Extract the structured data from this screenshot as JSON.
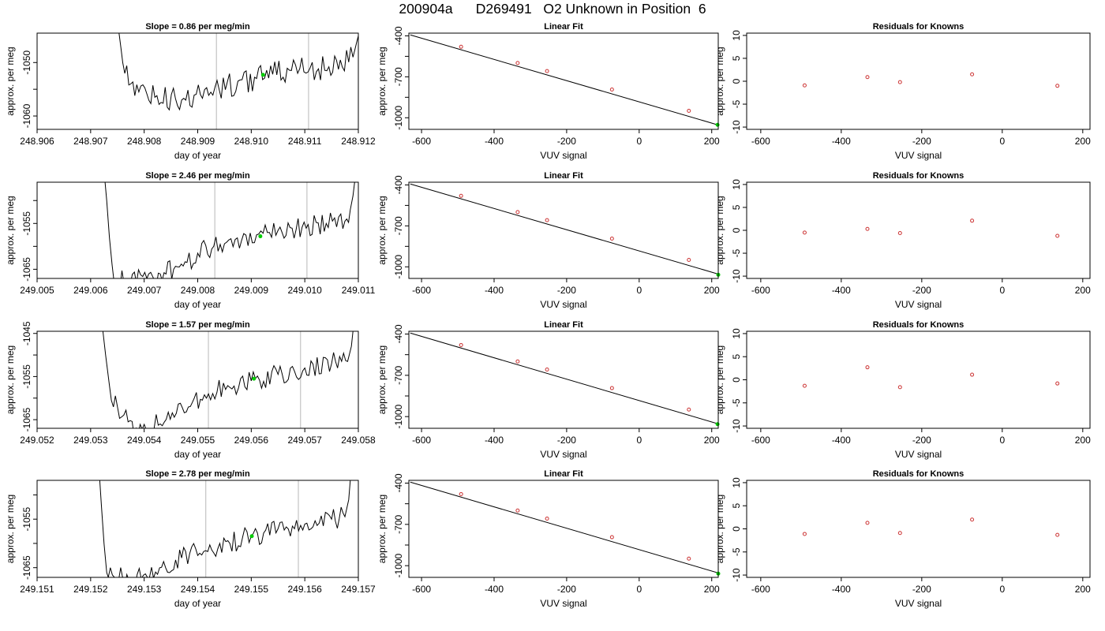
{
  "page_title": "200904a      D269491   O2 Unknown in Position  6",
  "colors": {
    "trace": "#000000",
    "marker": "#00cc00",
    "known_points": "#cc3333",
    "vline": "#c8c8c8",
    "fit_line": "#000000"
  },
  "chart_data": [
    {
      "type": "line",
      "panel": "time-series",
      "row": 1,
      "title": "Slope =  0.86  per meg/min",
      "xlabel": "day of year",
      "ylabel": "approx. per meg",
      "xlim": [
        248.906,
        248.912
      ],
      "ylim": [
        -1062.5,
        -1044.5
      ],
      "xticks": [
        248.906,
        248.907,
        248.908,
        248.909,
        248.91,
        248.911,
        248.912
      ],
      "xtick_labels": [
        "248.906",
        "248.907",
        "248.908",
        "248.909",
        "248.910",
        "248.911",
        "248.912"
      ],
      "yticks": [
        -1060,
        -1055,
        -1050
      ],
      "ytick_labels": [
        "-1060",
        "",
        "-1050"
      ],
      "vlines": [
        248.90935,
        248.91107
      ],
      "marker": {
        "x": 248.91022,
        "y": -1052.3
      },
      "trace_points": [
        [
          248.90753,
          -1044.5
        ],
        [
          248.9076,
          -1050
        ],
        [
          248.90775,
          -1054
        ],
        [
          248.9079,
          -1055.5
        ],
        [
          248.9082,
          -1056.5
        ],
        [
          248.9087,
          -1057
        ],
        [
          248.90905,
          -1056
        ],
        [
          248.9094,
          -1055
        ],
        [
          248.90975,
          -1053.5
        ],
        [
          248.9101,
          -1053
        ],
        [
          248.9104,
          -1052.2
        ],
        [
          248.91075,
          -1051.5
        ],
        [
          248.9111,
          -1051
        ],
        [
          248.91145,
          -1050.8
        ],
        [
          248.9117,
          -1050.8
        ],
        [
          248.9119,
          -1049
        ],
        [
          248.912,
          -1045
        ],
        [
          248.91205,
          -1044.5
        ]
      ],
      "noise_amp": 1.5
    },
    {
      "type": "scatter",
      "panel": "linear-fit",
      "row": 1,
      "title": "Linear Fit",
      "xlabel": "VUV signal",
      "ylabel": "approx. per meg",
      "xlim": [
        -635,
        218
      ],
      "ylim": [
        -1085,
        -380
      ],
      "xticks": [
        -600,
        -400,
        -200,
        0,
        200
      ],
      "xtick_labels": [
        "-600",
        "-400",
        "-200",
        "0",
        "200"
      ],
      "yticks": [
        -1000,
        -850,
        -700,
        -550,
        -400
      ],
      "ytick_labels": [
        "-1000",
        "",
        "-700",
        "",
        "-400"
      ],
      "known_x": [
        -491,
        -335,
        -254,
        -75,
        137
      ],
      "known_y": [
        -480,
        -599,
        -658,
        -793,
        -949
      ],
      "unknown": {
        "x": 216,
        "y": -1052
      },
      "fit_line": {
        "x": [
          -631,
          218
        ],
        "y": [
          -393,
          -1053
        ]
      }
    },
    {
      "type": "scatter",
      "panel": "residuals",
      "row": 1,
      "title": "Residuals for Knowns",
      "xlabel": "VUV signal",
      "ylabel": "approx. per meg",
      "xlim": [
        -635,
        218
      ],
      "ylim": [
        -10.5,
        10.5
      ],
      "xticks": [
        -600,
        -400,
        -200,
        0,
        200
      ],
      "xtick_labels": [
        "-600",
        "-400",
        "-200",
        "0",
        "200"
      ],
      "yticks": [
        -10,
        -5,
        0,
        5,
        10
      ],
      "ytick_labels": [
        "-10",
        "-5",
        "0",
        "5",
        "10"
      ],
      "x": [
        -491,
        -335,
        -254,
        -75,
        137
      ],
      "y": [
        -0.9,
        0.9,
        -0.2,
        1.5,
        -1.0
      ]
    },
    {
      "type": "line",
      "panel": "time-series",
      "row": 2,
      "title": "Slope =  2.46  per meg/min",
      "xlabel": "day of year",
      "ylabel": "approx. per meg",
      "xlim": [
        249.005,
        249.011
      ],
      "ylim": [
        -1067,
        -1046
      ],
      "xticks": [
        249.005,
        249.006,
        249.007,
        249.008,
        249.009,
        249.01,
        249.011
      ],
      "xtick_labels": [
        "249.005",
        "249.006",
        "249.007",
        "249.008",
        "249.009",
        "249.010",
        "249.011"
      ],
      "yticks": [
        -1065,
        -1060,
        -1055,
        -1050
      ],
      "ytick_labels": [
        "-1065",
        "",
        "-1055",
        ""
      ],
      "vlines": [
        249.00832,
        249.01004
      ],
      "marker": {
        "x": 249.00917,
        "y": -1057.8
      },
      "trace_points": [
        [
          249.00627,
          -1046
        ],
        [
          249.0063,
          -1050
        ],
        [
          249.00635,
          -1058
        ],
        [
          249.0064,
          -1064
        ],
        [
          249.00643,
          -1067
        ],
        [
          249.00705,
          -1067
        ],
        [
          249.0073,
          -1066
        ],
        [
          249.00755,
          -1065
        ],
        [
          249.0078,
          -1063.5
        ],
        [
          249.008,
          -1061.5
        ],
        [
          249.0083,
          -1060
        ],
        [
          249.0087,
          -1058.5
        ],
        [
          249.0091,
          -1057.5
        ],
        [
          249.0095,
          -1056.5
        ],
        [
          249.00995,
          -1055.8
        ],
        [
          249.0104,
          -1055
        ],
        [
          249.01075,
          -1054.5
        ],
        [
          249.01085,
          -1052
        ],
        [
          249.0109,
          -1049
        ],
        [
          249.01093,
          -1046
        ]
      ],
      "noise_amp": 1.4
    },
    {
      "type": "scatter",
      "panel": "linear-fit",
      "row": 2,
      "title": "Linear Fit",
      "xlabel": "VUV signal",
      "ylabel": "approx. per meg",
      "xlim": [
        -635,
        218
      ],
      "ylim": [
        -1085,
        -380
      ],
      "xticks": [
        -600,
        -400,
        -200,
        0,
        200
      ],
      "xtick_labels": [
        "-600",
        "-400",
        "-200",
        "0",
        "200"
      ],
      "yticks": [
        -1000,
        -850,
        -700,
        -550,
        -400
      ],
      "ytick_labels": [
        "-1000",
        "",
        "-700",
        "",
        "-400"
      ],
      "known_x": [
        -491,
        -335,
        -254,
        -75,
        137
      ],
      "known_y": [
        -480,
        -599,
        -658,
        -793,
        -949
      ],
      "unknown": {
        "x": 218,
        "y": -1058
      },
      "fit_line": {
        "x": [
          -631,
          218
        ],
        "y": [
          -393,
          -1053
        ]
      }
    },
    {
      "type": "scatter",
      "panel": "residuals",
      "row": 2,
      "title": "Residuals for Knowns",
      "xlabel": "VUV signal",
      "ylabel": "approx. per meg",
      "xlim": [
        -635,
        218
      ],
      "ylim": [
        -10.5,
        10.5
      ],
      "xticks": [
        -600,
        -400,
        -200,
        0,
        200
      ],
      "xtick_labels": [
        "-600",
        "-400",
        "-200",
        "0",
        "200"
      ],
      "yticks": [
        -10,
        -5,
        0,
        5,
        10
      ],
      "ytick_labels": [
        "-10",
        "-5",
        "0",
        "5",
        "10"
      ],
      "x": [
        -491,
        -335,
        -254,
        -75,
        137
      ],
      "y": [
        -0.5,
        0.3,
        -0.6,
        2.1,
        -1.2
      ]
    },
    {
      "type": "line",
      "panel": "time-series",
      "row": 3,
      "title": "Slope =  1.57  per meg/min",
      "xlabel": "day of year",
      "ylabel": "approx. per meg",
      "xlim": [
        249.052,
        249.058
      ],
      "ylim": [
        -1067,
        -1044.5
      ],
      "xticks": [
        249.052,
        249.053,
        249.054,
        249.055,
        249.056,
        249.057,
        249.058
      ],
      "xtick_labels": [
        "249.052",
        "249.053",
        "249.054",
        "249.055",
        "249.056",
        "249.057",
        "249.058"
      ],
      "yticks": [
        -1065,
        -1060,
        -1055,
        -1050,
        -1045
      ],
      "ytick_labels": [
        "-1065",
        "",
        "-1055",
        "",
        "-1045"
      ],
      "vlines": [
        249.0552,
        249.05692
      ],
      "marker": {
        "x": 249.05605,
        "y": -1055.5
      },
      "trace_points": [
        [
          249.05323,
          -1044.5
        ],
        [
          249.05328,
          -1050
        ],
        [
          249.05335,
          -1057
        ],
        [
          249.0535,
          -1062
        ],
        [
          249.0537,
          -1065.5
        ],
        [
          249.05385,
          -1067
        ],
        [
          249.0543,
          -1066
        ],
        [
          249.0546,
          -1063.5
        ],
        [
          249.0549,
          -1061
        ],
        [
          249.0552,
          -1059
        ],
        [
          249.0556,
          -1057.5
        ],
        [
          249.056,
          -1056
        ],
        [
          249.0565,
          -1054.5
        ],
        [
          249.057,
          -1053
        ],
        [
          249.0575,
          -1052
        ],
        [
          249.0578,
          -1051.5
        ],
        [
          249.05787,
          -1048
        ],
        [
          249.0579,
          -1044.5
        ]
      ],
      "noise_amp": 1.6
    },
    {
      "type": "scatter",
      "panel": "linear-fit",
      "row": 3,
      "title": "Linear Fit",
      "xlabel": "VUV signal",
      "ylabel": "approx. per meg",
      "xlim": [
        -635,
        218
      ],
      "ylim": [
        -1085,
        -380
      ],
      "xticks": [
        -600,
        -400,
        -200,
        0,
        200
      ],
      "xtick_labels": [
        "-600",
        "-400",
        "-200",
        "0",
        "200"
      ],
      "yticks": [
        -1000,
        -850,
        -700,
        -550,
        -400
      ],
      "ytick_labels": [
        "-1000",
        "",
        "-700",
        "",
        "-400"
      ],
      "known_x": [
        -491,
        -335,
        -254,
        -75,
        137
      ],
      "known_y": [
        -480,
        -599,
        -658,
        -793,
        -949
      ],
      "unknown": {
        "x": 216,
        "y": -1055
      },
      "fit_line": {
        "x": [
          -631,
          218
        ],
        "y": [
          -393,
          -1053
        ]
      }
    },
    {
      "type": "scatter",
      "panel": "residuals",
      "row": 3,
      "title": "Residuals for Knowns",
      "xlabel": "VUV signal",
      "ylabel": "approx. per meg",
      "xlim": [
        -635,
        218
      ],
      "ylim": [
        -10.5,
        10.5
      ],
      "xticks": [
        -600,
        -400,
        -200,
        0,
        200
      ],
      "xtick_labels": [
        "-600",
        "-400",
        "-200",
        "0",
        "200"
      ],
      "yticks": [
        -10,
        -5,
        0,
        5,
        10
      ],
      "ytick_labels": [
        "-10",
        "-5",
        "0",
        "5",
        "10"
      ],
      "x": [
        -491,
        -335,
        -254,
        -75,
        137
      ],
      "y": [
        -1.3,
        2.7,
        -1.6,
        1.1,
        -0.8
      ]
    },
    {
      "type": "line",
      "panel": "time-series",
      "row": 4,
      "title": "Slope =  2.78  per meg/min",
      "xlabel": "day of year",
      "ylabel": "approx. per meg",
      "xlim": [
        249.151,
        249.157
      ],
      "ylim": [
        -1067,
        -1047
      ],
      "xticks": [
        249.151,
        249.152,
        249.153,
        249.154,
        249.155,
        249.156,
        249.157
      ],
      "xtick_labels": [
        "249.151",
        "249.152",
        "249.153",
        "249.154",
        "249.155",
        "249.156",
        "249.157"
      ],
      "yticks": [
        -1065,
        -1060,
        -1055,
        -1050
      ],
      "ytick_labels": [
        "-1065",
        "",
        "-1055",
        ""
      ],
      "vlines": [
        249.15415,
        249.15588
      ],
      "marker": {
        "x": 249.15501,
        "y": -1058.5
      },
      "trace_points": [
        [
          249.15217,
          -1047
        ],
        [
          249.1522,
          -1052
        ],
        [
          249.15225,
          -1060
        ],
        [
          249.1523,
          -1066
        ],
        [
          249.15233,
          -1067
        ],
        [
          249.1531,
          -1067
        ],
        [
          249.1534,
          -1065
        ],
        [
          249.1537,
          -1063
        ],
        [
          249.15415,
          -1061.5
        ],
        [
          249.1546,
          -1060
        ],
        [
          249.155,
          -1058.5
        ],
        [
          249.1555,
          -1057
        ],
        [
          249.156,
          -1056
        ],
        [
          249.1565,
          -1055
        ],
        [
          249.15675,
          -1054.5
        ],
        [
          249.15682,
          -1051
        ],
        [
          249.15685,
          -1047
        ]
      ],
      "noise_amp": 1.4
    },
    {
      "type": "scatter",
      "panel": "linear-fit",
      "row": 4,
      "title": "Linear Fit",
      "xlabel": "VUV signal",
      "ylabel": "approx. per meg",
      "xlim": [
        -635,
        218
      ],
      "ylim": [
        -1085,
        -380
      ],
      "xticks": [
        -600,
        -400,
        -200,
        0,
        200
      ],
      "xtick_labels": [
        "-600",
        "-400",
        "-200",
        "0",
        "200"
      ],
      "yticks": [
        -1000,
        -850,
        -700,
        -550,
        -400
      ],
      "ytick_labels": [
        "-1000",
        "",
        "-700",
        "",
        "-400"
      ],
      "known_x": [
        -491,
        -335,
        -254,
        -75,
        137
      ],
      "known_y": [
        -480,
        -599,
        -658,
        -793,
        -949
      ],
      "unknown": {
        "x": 218,
        "y": -1058
      },
      "fit_line": {
        "x": [
          -631,
          218
        ],
        "y": [
          -393,
          -1053
        ]
      }
    },
    {
      "type": "scatter",
      "panel": "residuals",
      "row": 4,
      "title": "Residuals for Knowns",
      "xlabel": "VUV signal",
      "ylabel": "approx. per meg",
      "xlim": [
        -635,
        218
      ],
      "ylim": [
        -10.5,
        10.5
      ],
      "xticks": [
        -600,
        -400,
        -200,
        0,
        200
      ],
      "xtick_labels": [
        "-600",
        "-400",
        "-200",
        "0",
        "200"
      ],
      "yticks": [
        -10,
        -5,
        0,
        5,
        10
      ],
      "ytick_labels": [
        "-10",
        "-5",
        "0",
        "5",
        "10"
      ],
      "x": [
        -491,
        -335,
        -254,
        -75,
        137
      ],
      "y": [
        -1.1,
        1.3,
        -0.9,
        2.0,
        -1.3
      ]
    }
  ]
}
